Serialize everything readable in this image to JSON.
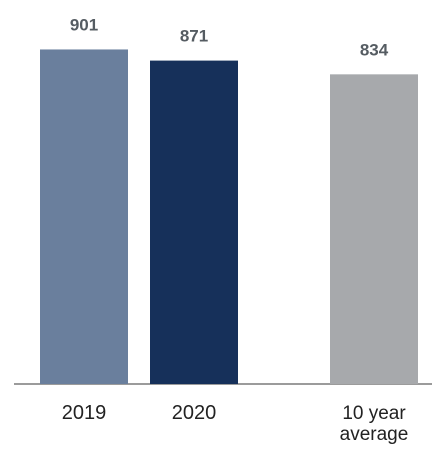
{
  "chart_data": {
    "type": "bar",
    "categories": [
      "2019",
      "2020",
      "10 year average"
    ],
    "category_lines": [
      [
        "2019"
      ],
      [
        "2020"
      ],
      [
        "10 year",
        "average"
      ]
    ],
    "values": [
      901,
      871,
      834
    ],
    "value_labels": [
      "901",
      "871",
      "834"
    ],
    "colors": [
      "#6a7f9d",
      "#16305a",
      "#a7a9ac"
    ],
    "axis_color": "#9b9b9b",
    "title": "",
    "xlabel": "",
    "ylabel": "",
    "grid": false,
    "legend": "none"
  }
}
